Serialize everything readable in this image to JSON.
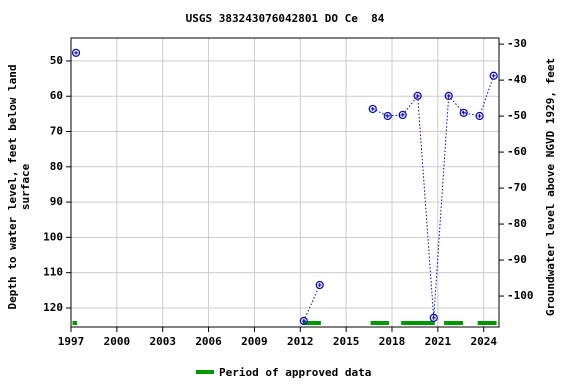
{
  "chart_data": {
    "type": "line",
    "title": "USGS 383243076042801 DO Ce  84",
    "y_label": [
      "Depth to water level, feet below land",
      "surface"
    ],
    "y2_label": "Groundwater level above NGVD 1929, feet",
    "xlim": [
      1997,
      2025
    ],
    "xticks": [
      1997,
      2000,
      2003,
      2006,
      2009,
      2012,
      2015,
      2018,
      2021,
      2024
    ],
    "ylim": [
      125.4,
      43.5
    ],
    "yticks": [
      50,
      60,
      70,
      80,
      90,
      100,
      110,
      120
    ],
    "y2lim": [
      -108.6,
      -28.3
    ],
    "y2ticks": [
      -30,
      -40,
      -50,
      -60,
      -70,
      -80,
      -90,
      -100
    ],
    "grid": true,
    "series": [
      {
        "name": "Depth to water level",
        "color": "#0000cc",
        "x": [
          1997.33,
          null,
          2012.23,
          2013.27,
          null,
          2016.74,
          2017.72,
          2018.7,
          2019.68,
          2020.73,
          2021.71,
          2022.69,
          2023.73,
          2024.65
        ],
        "values": [
          47.7,
          null,
          123.7,
          113.5,
          null,
          63.6,
          65.6,
          65.3,
          59.9,
          122.8,
          59.9,
          64.7,
          65.6,
          54.2
        ]
      }
    ],
    "periods_name": "Period of approved data",
    "periods_color": "#009900",
    "periods": [
      [
        1997.1,
        1997.4
      ],
      [
        2012.16,
        2013.35
      ],
      [
        2016.6,
        2017.8
      ],
      [
        2018.6,
        2020.8
      ],
      [
        2021.4,
        2022.65
      ],
      [
        2023.6,
        2024.84
      ]
    ]
  }
}
